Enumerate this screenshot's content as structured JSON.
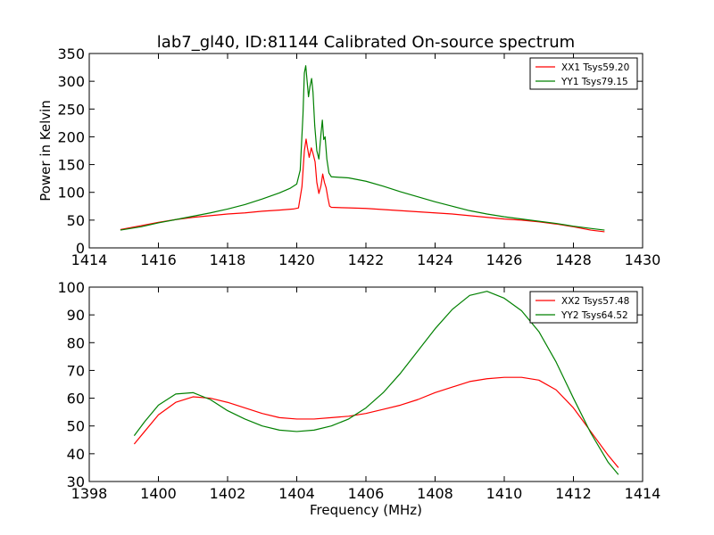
{
  "chart_data": [
    {
      "type": "line",
      "title": "lab7_gl40, ID:81144 Calibrated On-source spectrum",
      "xlabel": "",
      "ylabel": "Power in Kelvin",
      "xlim": [
        1414,
        1430
      ],
      "ylim": [
        0,
        350
      ],
      "xticks": [
        "1414",
        "1416",
        "1418",
        "1420",
        "1422",
        "1424",
        "1426",
        "1428",
        "1430"
      ],
      "yticks": [
        "0",
        "50",
        "100",
        "150",
        "200",
        "250",
        "300",
        "350"
      ],
      "legend_position": "top-right",
      "grid": false,
      "series": [
        {
          "name": "XX1 Tsys59.20",
          "color": "#ff0000",
          "points": [
            [
              1414.9,
              33
            ],
            [
              1415.5,
              40
            ],
            [
              1416.0,
              46
            ],
            [
              1416.5,
              51
            ],
            [
              1417.0,
              55
            ],
            [
              1417.5,
              58
            ],
            [
              1418.0,
              61
            ],
            [
              1418.5,
              63
            ],
            [
              1419.0,
              66
            ],
            [
              1419.5,
              68
            ],
            [
              1419.9,
              70
            ],
            [
              1420.05,
              72
            ],
            [
              1420.15,
              110
            ],
            [
              1420.22,
              175
            ],
            [
              1420.27,
              196
            ],
            [
              1420.31,
              180
            ],
            [
              1420.36,
              163
            ],
            [
              1420.42,
              180
            ],
            [
              1420.47,
              170
            ],
            [
              1420.53,
              155
            ],
            [
              1420.58,
              118
            ],
            [
              1420.64,
              98
            ],
            [
              1420.7,
              112
            ],
            [
              1420.75,
              133
            ],
            [
              1420.8,
              118
            ],
            [
              1420.85,
              108
            ],
            [
              1420.9,
              90
            ],
            [
              1420.95,
              75
            ],
            [
              1421.0,
              73
            ],
            [
              1421.5,
              72
            ],
            [
              1422.0,
              71
            ],
            [
              1422.5,
              69
            ],
            [
              1423.0,
              67
            ],
            [
              1423.5,
              65
            ],
            [
              1424.0,
              63
            ],
            [
              1424.5,
              61
            ],
            [
              1425.0,
              58
            ],
            [
              1425.5,
              55
            ],
            [
              1426.0,
              52
            ],
            [
              1426.5,
              50
            ],
            [
              1427.0,
              47
            ],
            [
              1427.5,
              43
            ],
            [
              1428.0,
              38
            ],
            [
              1428.5,
              32
            ],
            [
              1428.9,
              29
            ]
          ]
        },
        {
          "name": "YY1 Tsys79.15",
          "color": "#008000",
          "points": [
            [
              1414.9,
              32
            ],
            [
              1415.5,
              38
            ],
            [
              1416.0,
              45
            ],
            [
              1416.5,
              51
            ],
            [
              1417.0,
              57
            ],
            [
              1417.5,
              63
            ],
            [
              1418.0,
              70
            ],
            [
              1418.5,
              78
            ],
            [
              1419.0,
              88
            ],
            [
              1419.5,
              99
            ],
            [
              1419.8,
              107
            ],
            [
              1420.0,
              115
            ],
            [
              1420.1,
              140
            ],
            [
              1420.18,
              240
            ],
            [
              1420.22,
              315
            ],
            [
              1420.26,
              328
            ],
            [
              1420.3,
              300
            ],
            [
              1420.34,
              272
            ],
            [
              1420.38,
              290
            ],
            [
              1420.43,
              305
            ],
            [
              1420.47,
              280
            ],
            [
              1420.52,
              220
            ],
            [
              1420.58,
              175
            ],
            [
              1420.64,
              160
            ],
            [
              1420.7,
              205
            ],
            [
              1420.74,
              230
            ],
            [
              1420.78,
              195
            ],
            [
              1420.82,
              200
            ],
            [
              1420.87,
              160
            ],
            [
              1420.93,
              135
            ],
            [
              1421.0,
              128
            ],
            [
              1421.5,
              126
            ],
            [
              1422.0,
              120
            ],
            [
              1422.5,
              111
            ],
            [
              1423.0,
              101
            ],
            [
              1423.5,
              92
            ],
            [
              1424.0,
              83
            ],
            [
              1424.5,
              75
            ],
            [
              1425.0,
              67
            ],
            [
              1425.5,
              61
            ],
            [
              1426.0,
              56
            ],
            [
              1426.5,
              52
            ],
            [
              1427.0,
              48
            ],
            [
              1427.5,
              44
            ],
            [
              1428.0,
              39
            ],
            [
              1428.5,
              35
            ],
            [
              1428.9,
              32
            ]
          ]
        }
      ]
    },
    {
      "type": "line",
      "title": "",
      "xlabel": "Frequency (MHz)",
      "ylabel": "",
      "xlim": [
        1398,
        1414
      ],
      "ylim": [
        30,
        100
      ],
      "xticks": [
        "1398",
        "1400",
        "1402",
        "1404",
        "1406",
        "1408",
        "1410",
        "1412",
        "1414"
      ],
      "yticks": [
        "30",
        "40",
        "50",
        "60",
        "70",
        "80",
        "90",
        "100"
      ],
      "legend_position": "top-right",
      "grid": false,
      "series": [
        {
          "name": "XX2 Tsys57.48",
          "color": "#ff0000",
          "points": [
            [
              1399.3,
              43.5
            ],
            [
              1399.6,
              48
            ],
            [
              1400.0,
              54
            ],
            [
              1400.5,
              58.5
            ],
            [
              1401.0,
              60.5
            ],
            [
              1401.5,
              60
            ],
            [
              1402.0,
              58.5
            ],
            [
              1402.5,
              56.5
            ],
            [
              1403.0,
              54.5
            ],
            [
              1403.5,
              53
            ],
            [
              1404.0,
              52.5
            ],
            [
              1404.5,
              52.5
            ],
            [
              1405.0,
              53
            ],
            [
              1405.5,
              53.5
            ],
            [
              1406.0,
              54.5
            ],
            [
              1406.5,
              56
            ],
            [
              1407.0,
              57.5
            ],
            [
              1407.5,
              59.5
            ],
            [
              1408.0,
              62
            ],
            [
              1408.5,
              64
            ],
            [
              1409.0,
              66
            ],
            [
              1409.5,
              67
            ],
            [
              1410.0,
              67.5
            ],
            [
              1410.5,
              67.5
            ],
            [
              1411.0,
              66.5
            ],
            [
              1411.5,
              63
            ],
            [
              1412.0,
              56.5
            ],
            [
              1412.5,
              48
            ],
            [
              1413.0,
              39.5
            ],
            [
              1413.3,
              35
            ]
          ]
        },
        {
          "name": "YY2 Tsys64.52",
          "color": "#008000",
          "points": [
            [
              1399.3,
              46.5
            ],
            [
              1399.6,
              51.5
            ],
            [
              1400.0,
              57.5
            ],
            [
              1400.5,
              61.5
            ],
            [
              1401.0,
              62
            ],
            [
              1401.5,
              59.5
            ],
            [
              1402.0,
              55.5
            ],
            [
              1402.5,
              52.5
            ],
            [
              1403.0,
              50
            ],
            [
              1403.5,
              48.5
            ],
            [
              1404.0,
              48
            ],
            [
              1404.5,
              48.5
            ],
            [
              1405.0,
              50
            ],
            [
              1405.5,
              52.5
            ],
            [
              1406.0,
              56.5
            ],
            [
              1406.5,
              62
            ],
            [
              1407.0,
              69
            ],
            [
              1407.5,
              77
            ],
            [
              1408.0,
              85
            ],
            [
              1408.5,
              92
            ],
            [
              1409.0,
              97
            ],
            [
              1409.5,
              98.5
            ],
            [
              1410.0,
              96
            ],
            [
              1410.5,
              91.5
            ],
            [
              1411.0,
              84
            ],
            [
              1411.5,
              73
            ],
            [
              1412.0,
              60
            ],
            [
              1412.5,
              47.5
            ],
            [
              1413.0,
              37
            ],
            [
              1413.3,
              32.5
            ]
          ]
        }
      ]
    }
  ]
}
